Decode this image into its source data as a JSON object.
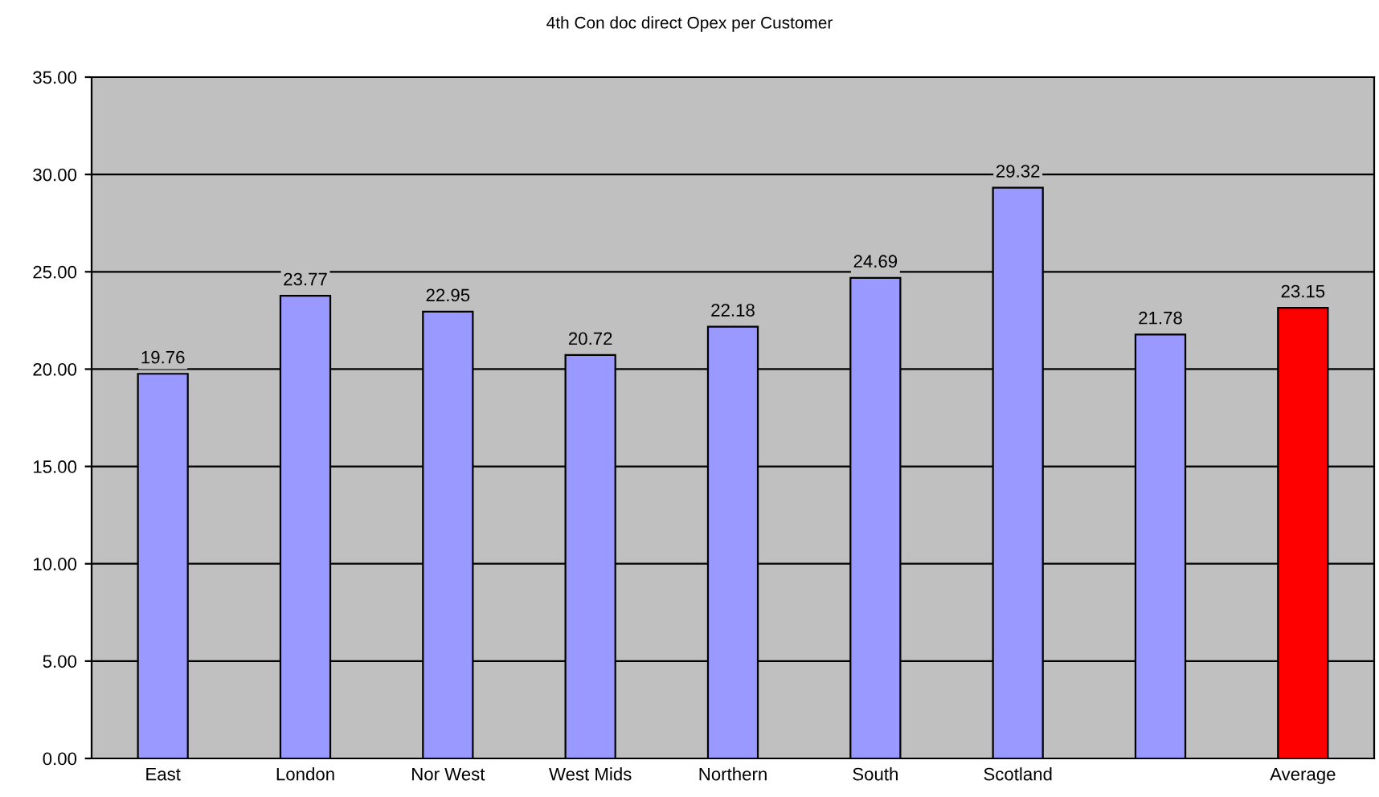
{
  "chart_data": {
    "type": "bar",
    "title": "4th Con doc direct Opex per Customer",
    "categories": [
      "East",
      "London",
      "Nor West",
      "West Mids",
      "Northern",
      "South",
      "Scotland",
      null,
      "Average"
    ],
    "values": [
      19.76,
      23.77,
      22.95,
      20.72,
      22.18,
      24.69,
      29.32,
      21.78,
      23.15
    ],
    "colors": [
      "#9999ff",
      "#9999ff",
      "#9999ff",
      "#9999ff",
      "#9999ff",
      "#9999ff",
      "#9999ff",
      "#9999ff",
      "#ff0000"
    ],
    "data_labels": true,
    "ylim": [
      0,
      35
    ],
    "yticks": [
      {
        "value": 0,
        "label": "0.00"
      },
      {
        "value": 5,
        "label": "5.00"
      },
      {
        "value": 10,
        "label": "10.00"
      },
      {
        "value": 15,
        "label": "15.00"
      },
      {
        "value": 20,
        "label": "20.00"
      },
      {
        "value": 25,
        "label": "25.00"
      },
      {
        "value": 30,
        "label": "30.00"
      },
      {
        "value": 35,
        "label": "35.00"
      }
    ],
    "grid": "y",
    "legend": false
  }
}
